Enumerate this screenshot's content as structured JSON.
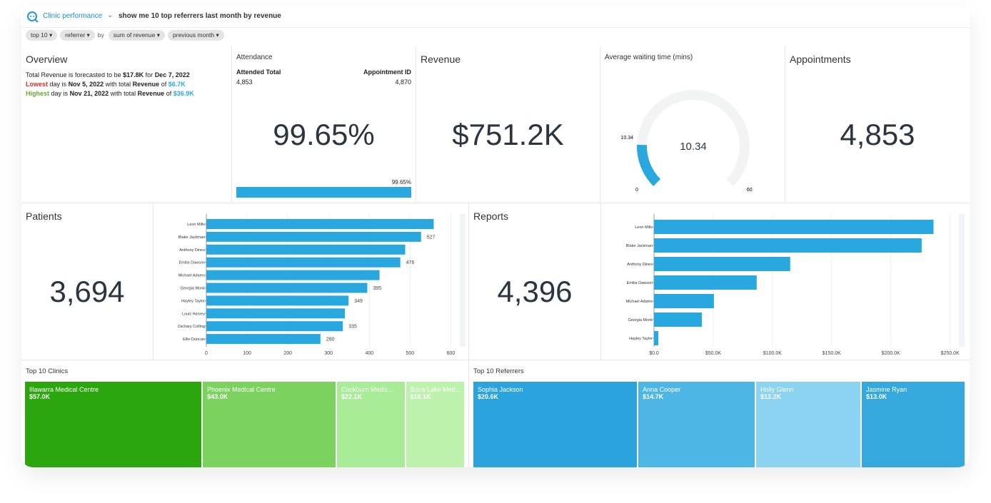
{
  "header": {
    "title": "Clinic performance",
    "query": "show me 10 top referrers last month by revenue"
  },
  "filters": [
    "top 10",
    "referrer",
    "by",
    "sum of revenue",
    "previous month"
  ],
  "overview": {
    "title": "Overview",
    "lines": [
      [
        "Total Revenue is forecasted to be",
        "$17.8K",
        "for",
        "Dec 7, 2022"
      ],
      [
        "Lowest",
        "day is",
        "Nov 5, 2022",
        "with total",
        "Revenue",
        "of",
        "$6.7K"
      ],
      [
        "Highest",
        "day is",
        "Nov 21, 2022",
        "with total",
        "Revenue",
        "of",
        "$36.9K"
      ]
    ]
  },
  "attendance": {
    "title": "Attendance",
    "columns": [
      {
        "label": "Attended Total",
        "value": "4,853"
      },
      {
        "label": "Appointment ID",
        "value": "4,870"
      }
    ],
    "percent": {
      "value": 99.65,
      "label": "99.65%"
    },
    "xlim": [
      0,
      100
    ],
    "color": "#29a8df"
  },
  "revenue": {
    "title": "Revenue",
    "value": "$751.2K"
  },
  "waiting_time": {
    "title": "Average waiting time (mins)",
    "value": 10.34,
    "min": 0,
    "max": 60,
    "color": "#29a8df"
  },
  "appointments": {
    "title": "Appointments",
    "value": "4,853"
  },
  "patients": {
    "title": "Patients",
    "value": "3,694",
    "chart": {
      "type": "bar",
      "color": "#29a8df",
      "categories": [
        "Leon Mills",
        "Blake Jackman",
        "Anthony Dines",
        "Emilia Dawson",
        "Michael Adams",
        "Georgia Monk",
        "Hayley Taylor",
        "Louis Harvey",
        "Zachary Colling",
        "Ellie Duncan"
      ],
      "values": [
        558,
        527,
        488,
        476,
        425,
        395,
        349,
        340,
        335,
        280
      ],
      "value_labels": [
        null,
        "527",
        null,
        "476",
        null,
        "395",
        "349",
        null,
        "335",
        "280"
      ],
      "xlim": [
        0,
        615
      ],
      "xticks": [
        0,
        100,
        200,
        300,
        400,
        500,
        600
      ],
      "grid": true
    }
  },
  "reports": {
    "title": "Reports",
    "value": "4,396",
    "chart": {
      "type": "bar",
      "color": "#29a8df",
      "categories": [
        "Leon Mills",
        "Blake Jackman",
        "Anthony Dines",
        "Emilia Dawson",
        "Michael Adams",
        "Georgia Monk",
        "Hayley Taylor"
      ],
      "values": [
        236000,
        226000,
        115000,
        86700,
        50600,
        40400,
        3600
      ],
      "xlim": [
        0,
        255000
      ],
      "xticks": [
        {
          "value": 0,
          "label": "$0.0"
        },
        {
          "value": 50000,
          "label": "$50.0K"
        },
        {
          "value": 100000,
          "label": "$100.0K"
        },
        {
          "value": 150000,
          "label": "$150.0K"
        },
        {
          "value": 200000,
          "label": "$200.0K"
        },
        {
          "value": 250000,
          "label": "$250.0K"
        }
      ],
      "grid": true
    }
  },
  "clinics": {
    "title": "Top 10 Clinics",
    "type": "treemap",
    "tiles": [
      {
        "name": "Illawarra Medical Centre",
        "value": 57000,
        "value_label": "$57.0K",
        "color": "#2ca60e"
      },
      {
        "name": "Phoenix Medical Centre",
        "value": 43000,
        "value_label": "$43.0K",
        "color": "#7cd25f"
      },
      {
        "name": "Cockburn Medic...",
        "value": 22100,
        "value_label": "$22.1K",
        "color": "#a8ec97"
      },
      {
        "name": "Bibra Lake Med...",
        "value": 19100,
        "value_label": "$19.1K",
        "color": "#bdf2ac"
      }
    ]
  },
  "referrers": {
    "title": "Top 10 Referrers",
    "type": "treemap",
    "tiles": [
      {
        "name": "Sophia Jackson",
        "value": 20600,
        "value_label": "$20.6K",
        "color": "#2ba4dd"
      },
      {
        "name": "Anna Cooper",
        "value": 14700,
        "value_label": "$14.7K",
        "color": "#4eb6e5"
      },
      {
        "name": "Holly Glenn",
        "value": 13200,
        "value_label": "$13.2K",
        "color": "#8bd3f1"
      },
      {
        "name": "Jasmine Ryan",
        "value": 13000,
        "value_label": "$13.0K",
        "color": "#35a9de"
      }
    ]
  }
}
